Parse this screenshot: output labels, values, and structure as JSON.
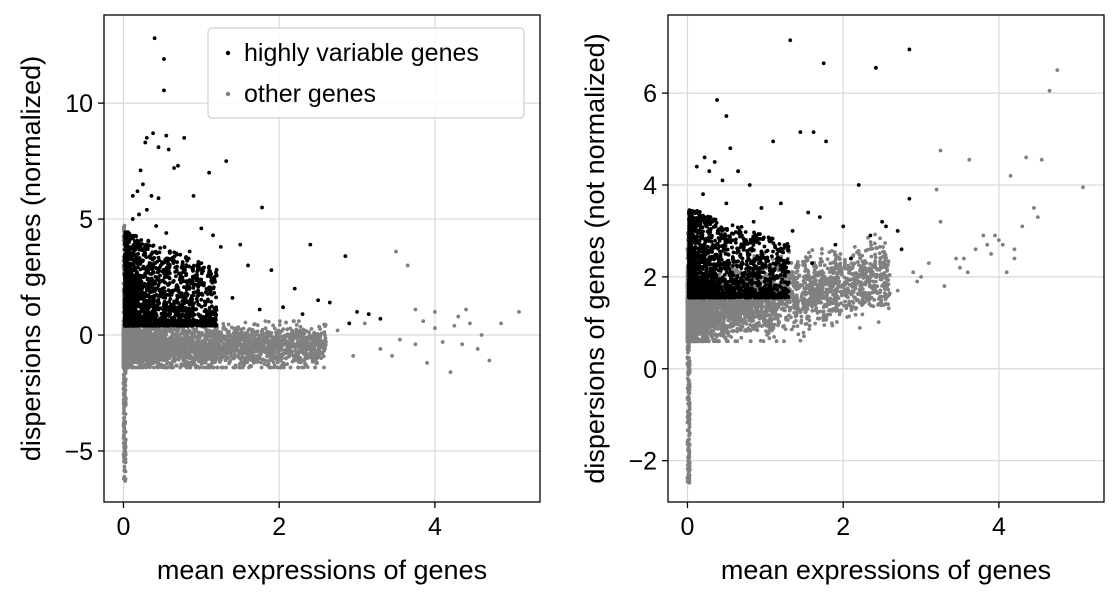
{
  "chart_data": [
    {
      "type": "scatter",
      "xlabel": "mean expressions of genes",
      "ylabel": "dispersions of genes (normalized)",
      "xlim": [
        -0.25,
        5.35
      ],
      "ylim": [
        -7.2,
        13.8
      ],
      "xticks": [
        0,
        2,
        4
      ],
      "xtick_labels": [
        "0",
        "2",
        "4"
      ],
      "yticks": [
        -5,
        0,
        5,
        10
      ],
      "ytick_labels": [
        "−5",
        "0",
        "5",
        "10"
      ],
      "grid": true,
      "legend": {
        "placement": "top-right",
        "entries": [
          {
            "label": "highly variable genes",
            "color": "#000000"
          },
          {
            "label": "other genes",
            "color": "#808080"
          }
        ]
      },
      "series": [
        {
          "name": "highly variable genes",
          "color": "#000000",
          "points": [
            [
              0.4,
              12.8
            ],
            [
              0.52,
              11.9
            ],
            [
              0.52,
              10.55
            ],
            [
              0.3,
              8.5
            ],
            [
              0.38,
              8.7
            ],
            [
              0.55,
              8.6
            ],
            [
              0.65,
              7.2
            ],
            [
              0.78,
              8.5
            ],
            [
              0.45,
              8.1
            ],
            [
              0.28,
              8.3
            ],
            [
              1.32,
              7.5
            ],
            [
              0.58,
              8.0
            ],
            [
              0.7,
              7.3
            ],
            [
              1.1,
              7.0
            ],
            [
              0.22,
              7.1
            ],
            [
              0.18,
              6.2
            ],
            [
              0.25,
              6.5
            ],
            [
              0.36,
              6.0
            ],
            [
              0.12,
              6.0
            ],
            [
              0.45,
              5.9
            ],
            [
              0.9,
              6.0
            ],
            [
              1.78,
              5.5
            ],
            [
              0.12,
              5.0
            ],
            [
              0.2,
              5.2
            ],
            [
              0.3,
              5.4
            ],
            [
              0.42,
              4.7
            ],
            [
              0.55,
              4.4
            ],
            [
              1.0,
              4.6
            ],
            [
              1.5,
              3.9
            ],
            [
              2.4,
              3.9
            ],
            [
              2.85,
              3.4
            ],
            [
              1.15,
              4.3
            ],
            [
              1.25,
              3.8
            ],
            [
              0.85,
              3.6
            ],
            [
              0.65,
              3.2
            ],
            [
              1.6,
              3.0
            ],
            [
              1.9,
              2.8
            ],
            [
              2.2,
              2.0
            ],
            [
              2.5,
              1.5
            ],
            [
              2.65,
              1.4
            ],
            [
              3.0,
              1.0
            ],
            [
              3.15,
              0.9
            ],
            [
              3.3,
              0.7
            ],
            [
              2.9,
              0.5
            ],
            [
              2.3,
              0.9
            ],
            [
              1.75,
              1.1
            ],
            [
              1.4,
              1.6
            ],
            [
              2.05,
              1.2
            ]
          ],
          "dense_region": {
            "x_range": [
              0.02,
              1.2
            ],
            "y_range": [
              0.4,
              4.5
            ],
            "point_count": 1900
          }
        },
        {
          "name": "other genes",
          "color": "#808080",
          "points": [
            [
              3.5,
              3.6
            ],
            [
              3.65,
              3.0
            ],
            [
              3.75,
              1.1
            ],
            [
              3.85,
              0.6
            ],
            [
              4.0,
              0.3
            ],
            [
              4.1,
              -0.3
            ],
            [
              4.25,
              0.4
            ],
            [
              4.35,
              -0.4
            ],
            [
              4.45,
              0.5
            ],
            [
              4.6,
              0.0
            ],
            [
              4.7,
              -1.1
            ],
            [
              4.85,
              0.5
            ],
            [
              5.08,
              1.0
            ],
            [
              4.2,
              -1.6
            ],
            [
              3.9,
              -1.2
            ],
            [
              3.3,
              -0.6
            ],
            [
              2.95,
              -0.9
            ],
            [
              2.6,
              -0.3
            ],
            [
              2.2,
              -0.5
            ],
            [
              1.9,
              -0.8
            ],
            [
              3.55,
              -0.2
            ],
            [
              4.55,
              -0.6
            ],
            [
              3.1,
              0.5
            ],
            [
              2.75,
              0.2
            ],
            [
              4.4,
              1.1
            ],
            [
              3.45,
              -0.9
            ],
            [
              2.45,
              -0.1
            ],
            [
              4.0,
              1.0
            ],
            [
              4.3,
              0.8
            ],
            [
              3.75,
              -0.4
            ]
          ],
          "dense_region": {
            "x_range": [
              0.0,
              2.6
            ],
            "y_range": [
              -1.4,
              0.6
            ],
            "point_count": 3200
          },
          "spike": {
            "x": 0.0,
            "y_range": [
              -6.3,
              4.8
            ],
            "point_count": 260
          }
        }
      ]
    },
    {
      "type": "scatter",
      "xlabel": "mean expressions of genes",
      "ylabel": "dispersions of genes (not normalized)",
      "xlim": [
        -0.25,
        5.35
      ],
      "ylim": [
        -2.9,
        7.7
      ],
      "xticks": [
        0,
        2,
        4
      ],
      "xtick_labels": [
        "0",
        "2",
        "4"
      ],
      "yticks": [
        -2,
        0,
        2,
        4,
        6
      ],
      "ytick_labels": [
        "−2",
        "0",
        "2",
        "4",
        "6"
      ],
      "grid": true,
      "series": [
        {
          "name": "highly variable genes",
          "color": "#000000",
          "points": [
            [
              1.32,
              7.15
            ],
            [
              2.85,
              6.95
            ],
            [
              1.75,
              6.65
            ],
            [
              2.42,
              6.55
            ],
            [
              0.38,
              5.85
            ],
            [
              0.5,
              5.5
            ],
            [
              1.45,
              5.15
            ],
            [
              1.62,
              5.15
            ],
            [
              1.1,
              4.95
            ],
            [
              1.78,
              4.95
            ],
            [
              0.55,
              4.8
            ],
            [
              0.35,
              4.5
            ],
            [
              0.22,
              4.6
            ],
            [
              0.12,
              4.4
            ],
            [
              0.28,
              4.3
            ],
            [
              0.65,
              4.3
            ],
            [
              0.45,
              4.1
            ],
            [
              0.8,
              4.0
            ],
            [
              2.2,
              4.0
            ],
            [
              0.2,
              3.8
            ],
            [
              0.5,
              3.6
            ],
            [
              0.95,
              3.5
            ],
            [
              1.2,
              3.6
            ],
            [
              1.55,
              3.4
            ],
            [
              1.7,
              3.3
            ],
            [
              2.5,
              3.2
            ],
            [
              2.7,
              3.0
            ],
            [
              2.35,
              2.9
            ],
            [
              2.0,
              3.1
            ],
            [
              1.9,
              2.7
            ],
            [
              2.1,
              2.4
            ],
            [
              2.85,
              3.7
            ],
            [
              2.55,
              3.1
            ],
            [
              1.35,
              3.0
            ],
            [
              1.05,
              2.8
            ],
            [
              0.7,
              2.9
            ],
            [
              0.85,
              3.2
            ],
            [
              2.75,
              2.6
            ],
            [
              1.15,
              2.5
            ],
            [
              1.6,
              2.3
            ]
          ],
          "dense_region": {
            "x_range": [
              0.02,
              1.3
            ],
            "y_range": [
              1.55,
              3.5
            ],
            "point_count": 1900
          }
        },
        {
          "name": "other genes",
          "color": "#808080",
          "points": [
            [
              4.75,
              6.5
            ],
            [
              4.65,
              6.05
            ],
            [
              5.08,
              3.95
            ],
            [
              4.55,
              4.55
            ],
            [
              4.35,
              4.6
            ],
            [
              3.62,
              4.55
            ],
            [
              3.25,
              4.75
            ],
            [
              4.15,
              4.2
            ],
            [
              4.45,
              3.5
            ],
            [
              4.5,
              3.3
            ],
            [
              4.05,
              2.7
            ],
            [
              4.2,
              2.4
            ],
            [
              4.1,
              2.1
            ],
            [
              3.9,
              2.5
            ],
            [
              3.8,
              2.9
            ],
            [
              3.5,
              2.2
            ],
            [
              3.55,
              2.4
            ],
            [
              3.2,
              3.9
            ],
            [
              3.25,
              3.2
            ],
            [
              3.0,
              2.0
            ],
            [
              2.7,
              1.7
            ],
            [
              2.9,
              2.1
            ],
            [
              3.45,
              2.4
            ],
            [
              3.7,
              2.6
            ],
            [
              3.3,
              1.8
            ],
            [
              4.2,
              2.6
            ],
            [
              4.3,
              3.1
            ],
            [
              3.95,
              2.9
            ],
            [
              3.1,
              2.3
            ],
            [
              2.55,
              1.6
            ],
            [
              2.4,
              1.5
            ],
            [
              4.0,
              2.8
            ],
            [
              3.6,
              2.1
            ],
            [
              3.85,
              2.7
            ],
            [
              2.95,
              1.9
            ]
          ],
          "dense_region": {
            "x_range": [
              0.0,
              2.6
            ],
            "y_range": [
              0.6,
              2.2
            ],
            "point_count": 3200
          },
          "spike": {
            "x": 0.0,
            "y_range": [
              -2.5,
              3.0
            ],
            "point_count": 260
          }
        }
      ]
    }
  ]
}
